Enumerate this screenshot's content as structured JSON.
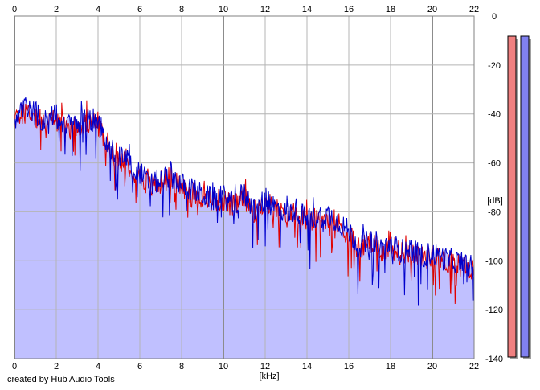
{
  "footer_text": "created by Hub Audio Tools",
  "colors": {
    "grid": "#b4b4b4",
    "grid_major": "#8c8c8c",
    "fill": "#c0c0ff",
    "blue_trace": "#0000cc",
    "red_trace": "#e00000",
    "meter_left": "#f08080",
    "meter_right": "#8080f0",
    "meter_shadow": "#a0a0a0"
  },
  "chart_data": {
    "type": "area",
    "xlabel": "[kHz]",
    "ylabel": "[dB]",
    "xlim": [
      0,
      22
    ],
    "ylim": [
      -140,
      0
    ],
    "x_ticks": [
      "0",
      "2",
      "4",
      "6",
      "8",
      "10",
      "12",
      "14",
      "16",
      "18",
      "20",
      "22"
    ],
    "y_ticks": [
      "0",
      "-20",
      "-40",
      "-60",
      "-80",
      "-100",
      "-120",
      "-140"
    ],
    "grid": true,
    "series": [
      {
        "color": "red",
        "x": [
          0.0,
          0.5,
          1.0,
          1.5,
          2.0,
          2.5,
          3.0,
          3.5,
          4.0,
          4.5,
          5.0,
          5.5,
          6.0,
          6.5,
          7.0,
          7.5,
          8.0,
          8.5,
          9.0,
          9.5,
          10.0,
          10.5,
          11.0,
          11.5,
          12.0,
          12.5,
          13.0,
          13.5,
          14.0,
          14.5,
          15.0,
          15.5,
          16.0,
          16.5,
          17.0,
          17.5,
          18.0,
          18.5,
          19.0,
          19.5,
          20.0,
          20.5,
          21.0,
          21.5,
          22.0
        ],
        "y": [
          -43,
          -38,
          -41,
          -44,
          -42,
          -46,
          -45,
          -43,
          -44,
          -55,
          -58,
          -61,
          -65,
          -70,
          -68,
          -66,
          -70,
          -72,
          -74,
          -76,
          -75,
          -78,
          -74,
          -80,
          -76,
          -79,
          -82,
          -80,
          -84,
          -83,
          -82,
          -85,
          -89,
          -95,
          -93,
          -96,
          -94,
          -97,
          -96,
          -99,
          -98,
          -100,
          -101,
          -102,
          -104
        ]
      },
      {
        "color": "blue",
        "x": [
          0.0,
          0.5,
          1.0,
          1.5,
          2.0,
          2.5,
          3.0,
          3.5,
          4.0,
          4.5,
          5.0,
          5.5,
          6.0,
          6.5,
          7.0,
          7.5,
          8.0,
          8.5,
          9.0,
          9.5,
          10.0,
          10.5,
          11.0,
          11.5,
          12.0,
          12.5,
          13.0,
          13.5,
          14.0,
          14.5,
          15.0,
          15.5,
          16.0,
          16.5,
          17.0,
          17.5,
          18.0,
          18.5,
          19.0,
          19.5,
          20.0,
          20.5,
          21.0,
          21.5,
          22.0
        ],
        "y": [
          -42,
          -37,
          -40,
          -43,
          -41,
          -45,
          -44,
          -42,
          -43,
          -54,
          -57,
          -60,
          -64,
          -69,
          -67,
          -65,
          -69,
          -71,
          -73,
          -75,
          -74,
          -77,
          -73,
          -79,
          -75,
          -78,
          -81,
          -79,
          -83,
          -82,
          -81,
          -84,
          -88,
          -94,
          -92,
          -95,
          -93,
          -96,
          -95,
          -98,
          -97,
          -99,
          -100,
          -101,
          -103
        ]
      }
    ],
    "meters": [
      {
        "channel": "left",
        "level_fraction": 1.0
      },
      {
        "channel": "right",
        "level_fraction": 1.0
      }
    ]
  }
}
